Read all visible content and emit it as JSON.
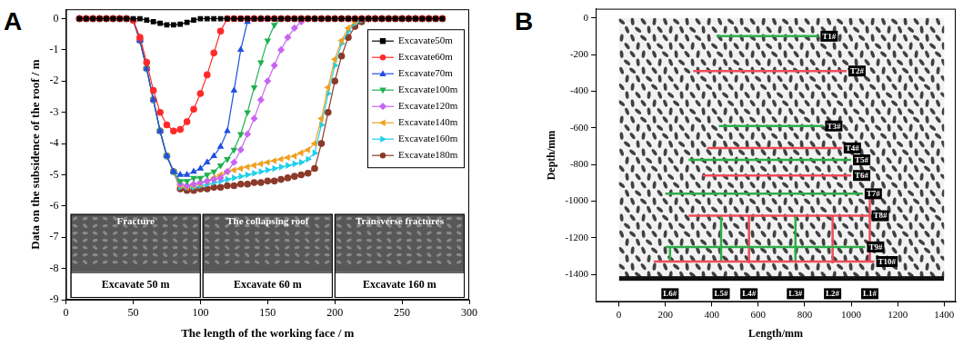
{
  "chart_data": [
    {
      "panel": "A",
      "type": "line",
      "x_label": "The length of the working face / m",
      "y_label": "Data on the subsidence of the roof / m",
      "x": [
        10,
        15,
        20,
        25,
        30,
        35,
        40,
        45,
        50,
        55,
        60,
        65,
        70,
        75,
        80,
        85,
        90,
        95,
        100,
        105,
        110,
        115,
        120,
        125,
        130,
        135,
        140,
        145,
        150,
        155,
        160,
        165,
        170,
        175,
        180,
        185,
        190,
        195,
        200,
        205,
        210,
        215,
        220,
        225,
        230,
        235,
        240,
        245,
        250,
        255,
        260,
        265,
        270,
        275,
        280
      ],
      "xlim": [
        0,
        300
      ],
      "xticks": [
        0,
        50,
        100,
        150,
        200,
        250,
        300
      ],
      "ylim": [
        -9,
        0.3
      ],
      "yticks": [
        0,
        -1,
        -2,
        -3,
        -4,
        -5,
        -6,
        -7,
        -8,
        -9
      ],
      "grid": false,
      "legend": "upper right",
      "series": [
        {
          "name": "Excavate50m",
          "color": "#000000",
          "marker": "square",
          "values": [
            0,
            0,
            0,
            0,
            0,
            0,
            0,
            0,
            0,
            0,
            -0.05,
            -0.1,
            -0.15,
            -0.2,
            -0.2,
            -0.18,
            -0.12,
            -0.05,
            0,
            0,
            0,
            0,
            0,
            0,
            0,
            0,
            0,
            0,
            0,
            0,
            0,
            0,
            0,
            0,
            0,
            0,
            0,
            0,
            0,
            0,
            0,
            0,
            0,
            0,
            0,
            0,
            0,
            0,
            0,
            0,
            0,
            0,
            0,
            0,
            0
          ]
        },
        {
          "name": "Excavate60m",
          "color": "#ff2a2a",
          "marker": "circle",
          "values": [
            0,
            0,
            0,
            0,
            0,
            0,
            0,
            0,
            -0.05,
            -0.6,
            -1.4,
            -2.3,
            -3.0,
            -3.4,
            -3.6,
            -3.55,
            -3.3,
            -2.9,
            -2.4,
            -1.8,
            -1.1,
            -0.4,
            0,
            0,
            0,
            0,
            0,
            0,
            0,
            0,
            0,
            0,
            0,
            0,
            0,
            0,
            0,
            0,
            0,
            0,
            0,
            0,
            0,
            0,
            0,
            0,
            0,
            0,
            0,
            0,
            0,
            0,
            0,
            0,
            0
          ]
        },
        {
          "name": "Excavate70m",
          "color": "#1f4fe0",
          "marker": "triangle-up",
          "values": [
            0,
            0,
            0,
            0,
            0,
            0,
            0,
            0,
            -0.05,
            -0.7,
            -1.6,
            -2.6,
            -3.6,
            -4.4,
            -4.9,
            -5.0,
            -5.0,
            -4.9,
            -4.8,
            -4.6,
            -4.4,
            -4.1,
            -3.6,
            -2.3,
            -1.0,
            -0.1,
            0,
            0,
            0,
            0,
            0,
            0,
            0,
            0,
            0,
            0,
            0,
            0,
            0,
            0,
            0,
            0,
            0,
            0,
            0,
            0,
            0,
            0,
            0,
            0,
            0,
            0,
            0,
            0,
            0
          ]
        },
        {
          "name": "Excavate100m",
          "color": "#1fb050",
          "marker": "triangle-down",
          "values": [
            0,
            0,
            0,
            0,
            0,
            0,
            0,
            0,
            -0.05,
            -0.7,
            -1.6,
            -2.6,
            -3.6,
            -4.4,
            -4.9,
            -5.2,
            -5.2,
            -5.1,
            -5.1,
            -5.0,
            -4.9,
            -4.7,
            -4.5,
            -4.2,
            -3.7,
            -3.0,
            -2.2,
            -1.4,
            -0.7,
            -0.2,
            0,
            0,
            0,
            0,
            0,
            0,
            0,
            0,
            0,
            0,
            0,
            0,
            0,
            0,
            0,
            0,
            0,
            0,
            0,
            0,
            0,
            0,
            0,
            0,
            0
          ]
        },
        {
          "name": "Excavate120m",
          "color": "#c766f2",
          "marker": "diamond",
          "values": [
            0,
            0,
            0,
            0,
            0,
            0,
            0,
            0,
            -0.05,
            -0.7,
            -1.6,
            -2.6,
            -3.6,
            -4.4,
            -4.9,
            -5.3,
            -5.35,
            -5.3,
            -5.25,
            -5.2,
            -5.15,
            -5.1,
            -4.9,
            -4.6,
            -4.2,
            -3.7,
            -3.2,
            -2.6,
            -2.0,
            -1.5,
            -1.0,
            -0.6,
            -0.3,
            -0.1,
            0,
            0,
            0,
            0,
            0,
            0,
            0,
            0,
            0,
            0,
            0,
            0,
            0,
            0,
            0,
            0,
            0,
            0,
            0,
            0,
            0
          ]
        },
        {
          "name": "Excavate140m",
          "color": "#f0a020",
          "marker": "triangle-left",
          "values": [
            0,
            0,
            0,
            0,
            0,
            0,
            0,
            0,
            -0.05,
            -0.7,
            -1.6,
            -2.6,
            -3.6,
            -4.4,
            -4.9,
            -5.35,
            -5.4,
            -5.35,
            -5.3,
            -5.2,
            -5.1,
            -5.0,
            -4.9,
            -4.85,
            -4.8,
            -4.75,
            -4.7,
            -4.65,
            -4.6,
            -4.55,
            -4.5,
            -4.45,
            -4.4,
            -4.3,
            -4.2,
            -4.0,
            -3.2,
            -2.2,
            -1.3,
            -0.7,
            -0.3,
            -0.1,
            0,
            0,
            0,
            0,
            0,
            0,
            0,
            0,
            0,
            0,
            0,
            0,
            0
          ]
        },
        {
          "name": "Excavate160m",
          "color": "#1fd0e8",
          "marker": "triangle-right",
          "values": [
            0,
            0,
            0,
            0,
            0,
            0,
            0,
            0,
            -0.05,
            -0.7,
            -1.6,
            -2.6,
            -3.6,
            -4.4,
            -4.9,
            -5.4,
            -5.4,
            -5.4,
            -5.35,
            -5.3,
            -5.25,
            -5.2,
            -5.15,
            -5.1,
            -5.05,
            -5.0,
            -4.95,
            -4.9,
            -4.85,
            -4.8,
            -4.75,
            -4.7,
            -4.65,
            -4.6,
            -4.5,
            -4.3,
            -3.4,
            -2.4,
            -1.5,
            -0.8,
            -0.4,
            -0.15,
            -0.05,
            0,
            0,
            0,
            0,
            0,
            0,
            0,
            0,
            0,
            0,
            0,
            0
          ]
        },
        {
          "name": "Excavate180m",
          "color": "#8b3a2a",
          "marker": "circle",
          "values": [
            0,
            0,
            0,
            0,
            0,
            0,
            0,
            0,
            -0.05,
            -0.7,
            -1.6,
            -2.6,
            -3.6,
            -4.4,
            -4.9,
            -5.45,
            -5.5,
            -5.5,
            -5.45,
            -5.45,
            -5.4,
            -5.4,
            -5.35,
            -5.35,
            -5.3,
            -5.3,
            -5.25,
            -5.25,
            -5.2,
            -5.2,
            -5.15,
            -5.1,
            -5.05,
            -5.0,
            -4.95,
            -4.8,
            -4.0,
            -3.0,
            -2.0,
            -1.2,
            -0.6,
            -0.25,
            -0.1,
            0,
            0,
            0,
            0,
            0,
            0,
            0,
            0,
            0,
            0,
            0,
            0
          ]
        }
      ],
      "annotations": [
        {
          "text": "Fracture",
          "caption": "Excavate 50 m"
        },
        {
          "text": "The collapsing roof",
          "caption": "Excavate 60 m"
        },
        {
          "text": "Transverse fractures",
          "caption": "Excavate 160 m"
        }
      ]
    },
    {
      "panel": "B",
      "type": "line",
      "x_label": "Length/mm",
      "y_label": "Depth/mm",
      "xlim": [
        -100,
        1450
      ],
      "xticks": [
        0,
        200,
        400,
        600,
        800,
        1000,
        1200,
        1400
      ],
      "ylim": [
        -1550,
        50
      ],
      "yticks": [
        0,
        -200,
        -400,
        -600,
        -800,
        -1000,
        -1200,
        -1400
      ],
      "grid": false,
      "series": [
        {
          "name": "T1#",
          "color": "#2fae4a",
          "x": [
            420,
            860
          ],
          "values": [
            -100,
            -100
          ]
        },
        {
          "name": "T2#",
          "color": "#ee4d5a",
          "x": [
            320,
            980
          ],
          "values": [
            -290,
            -290
          ]
        },
        {
          "name": "T3#",
          "color": "#2fae4a",
          "x": [
            430,
            880
          ],
          "values": [
            -590,
            -590
          ]
        },
        {
          "name": "T4#",
          "color": "#ee4d5a",
          "x": [
            380,
            960
          ],
          "values": [
            -710,
            -710
          ]
        },
        {
          "name": "T5#",
          "color": "#2fae4a",
          "x": [
            300,
            1000
          ],
          "values": [
            -775,
            -775
          ]
        },
        {
          "name": "T6#",
          "color": "#ee4d5a",
          "x": [
            360,
            1000
          ],
          "values": [
            -860,
            -860
          ]
        },
        {
          "name": "T7#",
          "color": "#2fae4a",
          "x": [
            200,
            1050
          ],
          "values": [
            -960,
            -960
          ]
        },
        {
          "name": "T8#",
          "color": "#ee4d5a",
          "x": [
            300,
            1080
          ],
          "values": [
            -1080,
            -1080
          ]
        },
        {
          "name": "T9#",
          "color": "#2fae4a",
          "x": [
            200,
            1060
          ],
          "values": [
            -1250,
            -1250
          ]
        },
        {
          "name": "T10#",
          "color": "#ee4d5a",
          "x": [
            150,
            1100
          ],
          "values": [
            -1330,
            -1330
          ]
        },
        {
          "name": "L1#",
          "color": "#ee4d5a",
          "x": [
            1080,
            1080
          ],
          "values": [
            -960,
            -1330
          ]
        },
        {
          "name": "L2#",
          "color": "#ee4d5a",
          "x": [
            920,
            920
          ],
          "values": [
            -1080,
            -1340
          ]
        },
        {
          "name": "L3#",
          "color": "#2fae4a",
          "x": [
            760,
            760
          ],
          "values": [
            -1080,
            -1330
          ]
        },
        {
          "name": "L4#",
          "color": "#ee4d5a",
          "x": [
            560,
            560
          ],
          "values": [
            -1080,
            -1340
          ]
        },
        {
          "name": "L5#",
          "color": "#2fae4a",
          "x": [
            440,
            440
          ],
          "values": [
            -1080,
            -1330
          ]
        },
        {
          "name": "L6#",
          "color": "#2fae4a",
          "x": [
            220,
            220
          ],
          "values": [
            -1250,
            -1330
          ]
        }
      ]
    }
  ]
}
